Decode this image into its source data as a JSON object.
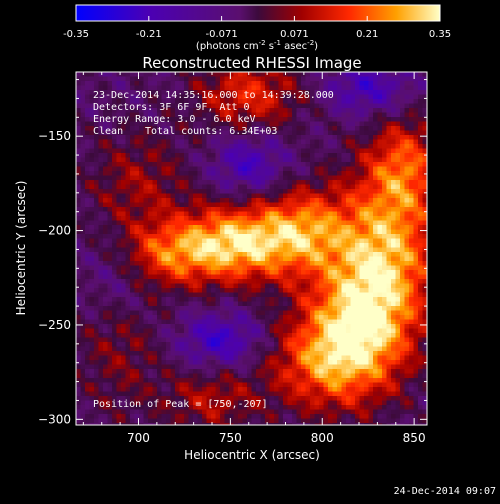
{
  "chart_data": {
    "type": "heatmap",
    "title": "Reconstructed RHESSI Image",
    "xlabel": "Heliocentric X (arcsec)",
    "ylabel": "Heliocentric Y (arcsec)",
    "xlim": [
      666,
      857
    ],
    "ylim": [
      -303,
      -116
    ],
    "x_ticks": [
      700,
      750,
      800,
      850
    ],
    "y_ticks": [
      -150,
      -200,
      -250,
      -300
    ],
    "colorbar": {
      "range": [
        -0.35,
        0.35
      ],
      "ticks": [
        "-0.35",
        "-0.21",
        "-0.071",
        "0.071",
        "0.21",
        "0.35"
      ],
      "units_prefix": "(photons cm",
      "units_sup1": "-2",
      "units_mid": " s",
      "units_sup2": "-1",
      "units_mid2": " asec",
      "units_sup3": "-2",
      "units_suffix": ")"
    },
    "annotations": {
      "time_range": "23-Dec-2014 14:35:16.000 to 14:39:28.000",
      "detectors": "Detectors: 3F 6F 9F, Att 0",
      "energy": "Energy Range: 3.0 - 6.0 keV",
      "method": "Clean",
      "total_counts": "Total counts: 6.34E+03",
      "peak_label": "Position of Peak = [750,-207]"
    },
    "peak": [
      750,
      -207
    ],
    "grid": false,
    "colormap": "rhessi-heat",
    "features": [
      {
        "x": 752,
        "y": -207,
        "sx": 22,
        "sy": 14,
        "value": 0.36
      },
      {
        "x": 715,
        "y": -213,
        "sx": 18,
        "sy": 12,
        "value": 0.2
      },
      {
        "x": 790,
        "y": -200,
        "sx": 18,
        "sy": 16,
        "value": 0.26
      },
      {
        "x": 835,
        "y": -210,
        "sx": 20,
        "sy": 30,
        "value": 0.3
      },
      {
        "x": 820,
        "y": -250,
        "sx": 20,
        "sy": 24,
        "value": 0.3
      },
      {
        "x": 800,
        "y": -270,
        "sx": 22,
        "sy": 18,
        "value": 0.22
      },
      {
        "x": 845,
        "y": -165,
        "sx": 14,
        "sy": 18,
        "value": 0.2
      },
      {
        "x": 760,
        "y": -128,
        "sx": 20,
        "sy": 14,
        "value": 0.2
      },
      {
        "x": 700,
        "y": -175,
        "sx": 20,
        "sy": 20,
        "value": 0.12
      },
      {
        "x": 690,
        "y": -260,
        "sx": 18,
        "sy": 30,
        "value": 0.1
      },
      {
        "x": 740,
        "y": -290,
        "sx": 18,
        "sy": 12,
        "value": 0.14
      },
      {
        "x": 760,
        "y": -165,
        "sx": 14,
        "sy": 12,
        "value": -0.16
      },
      {
        "x": 745,
        "y": -258,
        "sx": 16,
        "sy": 10,
        "value": -0.18
      },
      {
        "x": 825,
        "y": -125,
        "sx": 16,
        "sy": 10,
        "value": -0.16
      },
      {
        "x": 690,
        "y": -225,
        "sx": 14,
        "sy": 16,
        "value": -0.1
      }
    ]
  },
  "footer": {
    "timestamp": "24-Dec-2014 09:07"
  }
}
